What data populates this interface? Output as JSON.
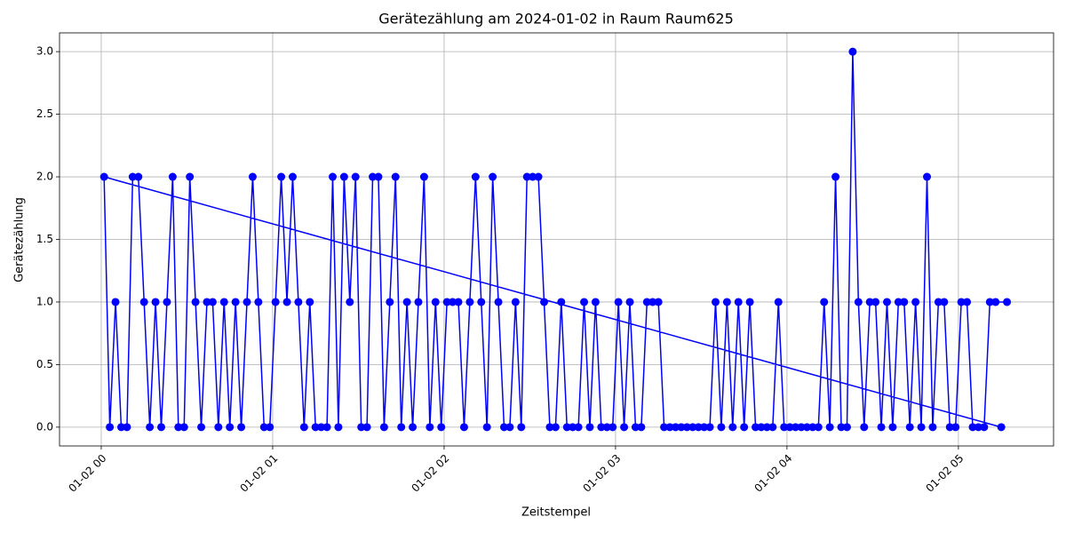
{
  "chart_data": {
    "type": "line",
    "title": "Gerätezählung am 2024-01-02 in Raum Raum625",
    "x_label": "Zeitstempel",
    "y_label": "Gerätezählung",
    "color": "#0000ff",
    "grid": true,
    "x": [
      315,
      1,
      3,
      5,
      7,
      9,
      11,
      13,
      15,
      17,
      19,
      21,
      23,
      25,
      27,
      29,
      31,
      33,
      35,
      37,
      39,
      41,
      43,
      45,
      47,
      49,
      51,
      53,
      55,
      57,
      59,
      61,
      63,
      65,
      67,
      69,
      71,
      73,
      75,
      77,
      79,
      81,
      83,
      85,
      87,
      89,
      91,
      93,
      95,
      97,
      99,
      101,
      103,
      105,
      107,
      109,
      111,
      113,
      115,
      117,
      119,
      121,
      123,
      125,
      127,
      129,
      131,
      133,
      135,
      137,
      139,
      141,
      143,
      145,
      147,
      149,
      151,
      153,
      155,
      157,
      159,
      161,
      163,
      165,
      167,
      169,
      171,
      173,
      175,
      177,
      179,
      181,
      183,
      185,
      187,
      189,
      191,
      193,
      195,
      197,
      199,
      201,
      203,
      205,
      207,
      209,
      211,
      213,
      215,
      217,
      219,
      221,
      223,
      225,
      227,
      229,
      231,
      233,
      235,
      237,
      239,
      241,
      243,
      245,
      247,
      249,
      251,
      253,
      255,
      257,
      259,
      261,
      263,
      265,
      267,
      269,
      271,
      273,
      275,
      277,
      279,
      281,
      283,
      285,
      287,
      289,
      291,
      293,
      295,
      297,
      299,
      301,
      303,
      305,
      307,
      309,
      311,
      313,
      317
    ],
    "values": [
      0,
      2,
      0,
      1,
      0,
      0,
      2,
      2,
      1,
      0,
      1,
      0,
      1,
      2,
      0,
      0,
      2,
      1,
      0,
      1,
      1,
      0,
      1,
      0,
      1,
      0,
      1,
      2,
      1,
      0,
      0,
      1,
      2,
      1,
      2,
      1,
      0,
      1,
      0,
      0,
      0,
      2,
      0,
      2,
      1,
      2,
      0,
      0,
      2,
      2,
      0,
      1,
      2,
      0,
      1,
      0,
      1,
      2,
      0,
      1,
      0,
      1,
      1,
      1,
      0,
      1,
      2,
      1,
      0,
      2,
      1,
      0,
      0,
      1,
      0,
      2,
      2,
      2,
      1,
      0,
      0,
      1,
      0,
      0,
      0,
      1,
      0,
      1,
      0,
      0,
      0,
      1,
      0,
      1,
      0,
      0,
      1,
      1,
      1,
      0,
      0,
      0,
      0,
      0,
      0,
      0,
      0,
      0,
      1,
      0,
      1,
      0,
      1,
      0,
      1,
      0,
      0,
      0,
      0,
      1,
      0,
      0,
      0,
      0,
      0,
      0,
      0,
      1,
      0,
      2,
      0,
      0,
      3,
      1,
      0,
      1,
      1,
      0,
      1,
      0,
      1,
      1,
      0,
      1,
      0,
      2,
      0,
      1,
      1,
      0,
      0,
      1,
      1,
      0,
      0,
      0,
      1,
      1,
      1
    ],
    "xlim": [
      -14.6,
      333.3
    ],
    "ylim": [
      -0.15,
      3.15
    ],
    "xticks": [
      {
        "value": 0,
        "label": "01-02 00"
      },
      {
        "value": 60,
        "label": "01-02 01"
      },
      {
        "value": 120,
        "label": "01-02 02"
      },
      {
        "value": 180,
        "label": "01-02 03"
      },
      {
        "value": 240,
        "label": "01-02 04"
      },
      {
        "value": 300,
        "label": "01-02 05"
      }
    ],
    "yticks": [
      {
        "value": 0,
        "label": "0.0"
      },
      {
        "value": 0.5,
        "label": "0.5"
      },
      {
        "value": 1,
        "label": "1.0"
      },
      {
        "value": 1.5,
        "label": "1.5"
      },
      {
        "value": 2,
        "label": "2.0"
      },
      {
        "value": 2.5,
        "label": "2.5"
      },
      {
        "value": 3,
        "label": "3.0"
      }
    ]
  }
}
